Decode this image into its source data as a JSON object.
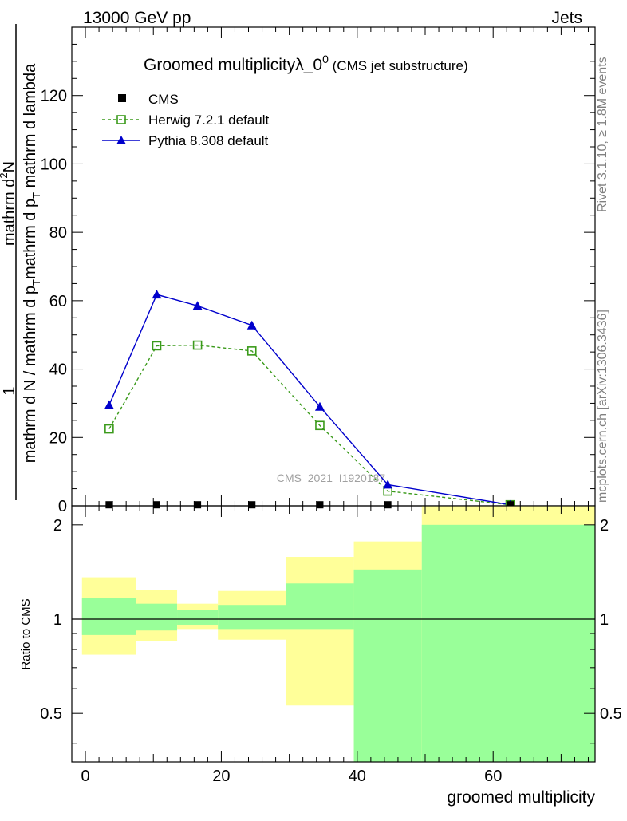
{
  "header": {
    "energy_label": "13000 GeV pp",
    "process_label": "Jets"
  },
  "side_labels": {
    "rivet": "Rivet 3.1.10, ≥ 1.8M events",
    "mcplots": "mcplots.cern.ch [arXiv:1306.3436]"
  },
  "watermark": "CMS_2021_I1920187",
  "colors": {
    "cms": "#000000",
    "herwig": "#3a9a1a",
    "pythia": "#0000cc",
    "band_inner": "#99ff99",
    "band_outer": "#ffff99"
  },
  "chart_data": [
    {
      "type": "line",
      "title": "Groomed multiplicityλ_0",
      "title_superscript": "0",
      "subtitle": "(CMS jet substructure)",
      "ylabel_numerator": "1",
      "ylabel_denominator": "mathrm d N / mathrm d p",
      "ylabel_sub": "T",
      "ylabel_rest": "mathrm d p",
      "ylabel_sub2": "T",
      "ylabel_end": "mathrm d lambda",
      "ylabel_top": "mathrm d",
      "ylabel_top_sup": "2",
      "ylabel_top_end": "N",
      "xlim": [
        -2,
        75
      ],
      "ylim": [
        0,
        140
      ],
      "yticks": [
        0,
        20,
        40,
        60,
        80,
        100,
        120
      ],
      "bins": [
        [
          -0.5,
          7.5
        ],
        [
          7.5,
          13.5
        ],
        [
          13.5,
          19.5
        ],
        [
          19.5,
          29.5
        ],
        [
          29.5,
          39.5
        ],
        [
          39.5,
          49.5
        ],
        [
          49.5,
          75.5
        ]
      ],
      "legend_placement": "top-left",
      "series": [
        {
          "name": "CMS",
          "x": [
            3.5,
            10.5,
            16.5,
            24.5,
            34.5,
            44.5,
            62.5
          ],
          "y": [
            0.3,
            0.3,
            0.3,
            0.3,
            0.3,
            0.3,
            0.3
          ]
        },
        {
          "name": "Herwig 7.2.1 default",
          "x": [
            3.5,
            10.5,
            16.5,
            24.5,
            34.5,
            44.5,
            62.5
          ],
          "y": [
            22.5,
            46.8,
            47.0,
            45.3,
            23.5,
            4.3,
            0.3
          ]
        },
        {
          "name": "Pythia 8.308 default",
          "x": [
            3.5,
            10.5,
            16.5,
            24.5,
            34.5,
            44.5,
            62.5
          ],
          "y": [
            29.5,
            61.8,
            58.5,
            52.8,
            29.0,
            6.2,
            0.3
          ]
        }
      ]
    },
    {
      "type": "area",
      "xlabel": "groomed multiplicity",
      "ylabel": "Ratio to CMS",
      "xlim": [
        -2,
        75
      ],
      "ylim": [
        0.35,
        2.3
      ],
      "log_scale": true,
      "xticks": [
        0,
        20,
        40,
        60
      ],
      "yticks": [
        0.5,
        1,
        2
      ],
      "reference_line": 1,
      "bins": [
        [
          -0.5,
          7.5
        ],
        [
          7.5,
          13.5
        ],
        [
          13.5,
          19.5
        ],
        [
          19.5,
          29.5
        ],
        [
          29.5,
          39.5
        ],
        [
          39.5,
          49.5
        ],
        [
          49.5,
          75.5
        ]
      ],
      "band_inner_low": [
        0.89,
        0.92,
        0.96,
        0.93,
        0.93,
        0.35,
        0.35
      ],
      "band_inner_high": [
        1.17,
        1.12,
        1.07,
        1.11,
        1.3,
        1.44,
        2.0
      ],
      "band_outer_low": [
        0.77,
        0.85,
        0.93,
        0.86,
        0.53,
        0.35,
        0.35
      ],
      "band_outer_high": [
        1.36,
        1.24,
        1.12,
        1.23,
        1.58,
        1.77,
        2.3
      ]
    }
  ]
}
